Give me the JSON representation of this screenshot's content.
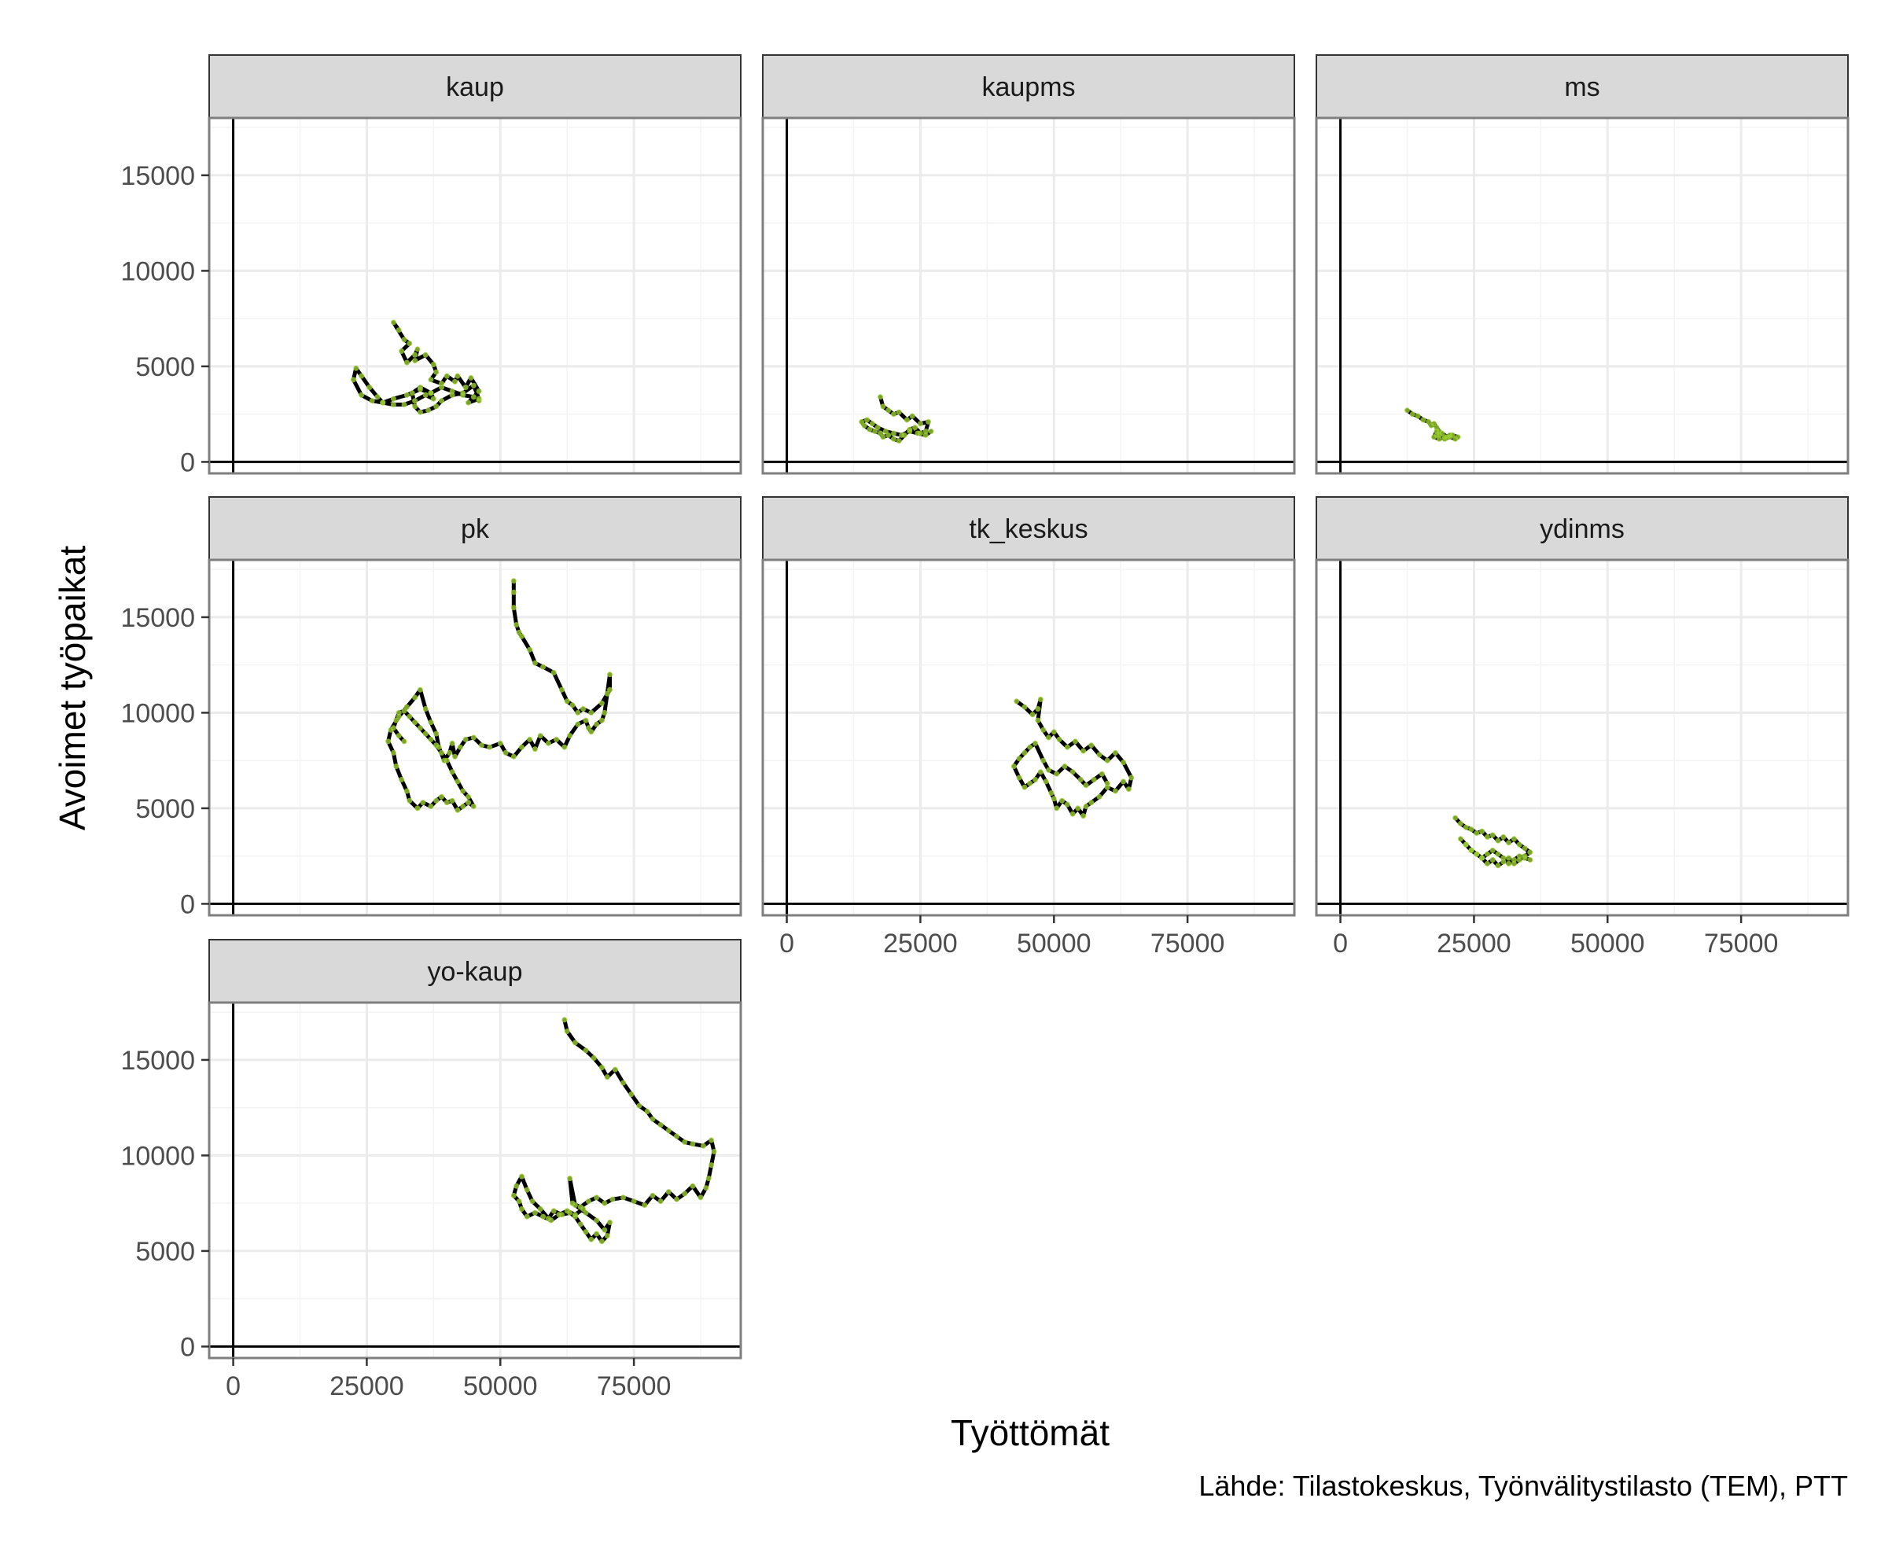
{
  "chart_data": {
    "type": "line",
    "xlabel": "Työttömät",
    "ylabel": "Avoimet työpaikat",
    "caption": "Lähde: Tilastokeskus, Työnvälitystilasto (TEM), PTT",
    "xlim": [
      -4500,
      95000
    ],
    "ylim": [
      -600,
      18000
    ],
    "x_ticks": [
      0,
      25000,
      50000,
      75000
    ],
    "y_ticks": [
      0,
      5000,
      10000,
      15000
    ],
    "grid": true,
    "colors": {
      "line": "#000000",
      "point": "#9acd32",
      "strip_fill": "#d9d9d9",
      "panel_border": "#7f7f7f",
      "grid": "#ebebeb"
    },
    "panels": [
      {
        "name": "kaup",
        "x": [
          31000,
          30000,
          32000,
          33000,
          31500,
          32500,
          34000,
          34500,
          34000,
          36000,
          37500,
          38000,
          37000,
          39000,
          40000,
          41500,
          42000,
          43500,
          44500,
          46000,
          44000,
          46000,
          45000,
          43000,
          41000,
          39000,
          38000,
          36500,
          35000,
          34000,
          33500,
          35000,
          37000,
          37500,
          36000,
          34000,
          32000,
          30000,
          28000,
          27000,
          25500,
          24000,
          23000,
          22500,
          24000,
          26000,
          28000,
          30000,
          32500,
          35000,
          37000,
          39000,
          41000,
          43000,
          45000,
          46000
        ],
        "y": [
          6900,
          7300,
          6400,
          6200,
          5800,
          5200,
          5600,
          5900,
          5300,
          5600,
          5100,
          4700,
          4300,
          4100,
          4500,
          4200,
          4500,
          3900,
          4400,
          3700,
          3100,
          3300,
          4000,
          3600,
          3500,
          3200,
          2900,
          2700,
          2600,
          2900,
          3600,
          3900,
          3600,
          3300,
          3500,
          3200,
          3000,
          3000,
          3100,
          3400,
          3900,
          4500,
          4900,
          4300,
          3500,
          3200,
          3100,
          3300,
          3500,
          3800,
          3600,
          3900,
          3700,
          3500,
          3400,
          3200
        ]
      },
      {
        "name": "kaupms",
        "x": [
          17500,
          18000,
          19000,
          20000,
          21000,
          22500,
          23500,
          25000,
          26500,
          26000,
          25000,
          24000,
          23000,
          22000,
          21000,
          20000,
          19000,
          18000,
          17500,
          16500,
          15500,
          14500,
          14000,
          15000,
          16000,
          17000,
          18500,
          20000,
          21500,
          23000,
          24500,
          26000,
          27000
        ],
        "y": [
          3400,
          2900,
          2700,
          2500,
          2600,
          2200,
          2400,
          2000,
          2100,
          1600,
          1500,
          1800,
          1700,
          1400,
          1100,
          1200,
          1400,
          1300,
          1500,
          1600,
          1700,
          1900,
          2100,
          2200,
          2000,
          1800,
          1600,
          1500,
          1400,
          1600,
          1500,
          1400,
          1600
        ]
      },
      {
        "name": "ms",
        "x": [
          12500,
          13500,
          14500,
          15500,
          16500,
          17000,
          17500,
          18000,
          18500,
          18000,
          19000,
          20000,
          21000,
          22000,
          21500,
          20500,
          19500,
          18500,
          18000,
          17500,
          18500,
          19500,
          20500
        ],
        "y": [
          2700,
          2500,
          2400,
          2200,
          2100,
          1900,
          2000,
          1800,
          1600,
          1400,
          1500,
          1300,
          1400,
          1300,
          1200,
          1300,
          1200,
          1400,
          1600,
          1300,
          1200,
          1300,
          1400
        ]
      },
      {
        "name": "pk",
        "x": [
          52500,
          52500,
          52500,
          53000,
          53500,
          54000,
          55500,
          56500,
          58000,
          60000,
          61500,
          62500,
          63500,
          64500,
          65500,
          67000,
          69000,
          70500,
          70500,
          70000,
          69500,
          69000,
          68000,
          67000,
          66500,
          66000,
          64500,
          63000,
          62000,
          60500,
          59000,
          57500,
          56500,
          55500,
          54000,
          52500,
          51000,
          50000,
          48000,
          46500,
          45000,
          43500,
          42500,
          41500,
          41000,
          40500,
          39500,
          38500,
          38000,
          37000,
          36000,
          35000,
          34000,
          32500,
          31000,
          29500,
          29000,
          30000,
          30500,
          31500,
          32500,
          33000,
          34500,
          35500,
          37000,
          38000,
          39000,
          40000,
          41000,
          42000,
          43000,
          44000,
          45000,
          44000,
          43000,
          42000,
          41000,
          40000,
          39000,
          38000,
          37000,
          36000,
          35000,
          34000,
          33000,
          32000,
          31000,
          30500,
          30000,
          31000,
          32000
        ],
        "y": [
          16900,
          16300,
          15500,
          14600,
          14200,
          14000,
          13300,
          12600,
          12400,
          12100,
          11200,
          10600,
          10400,
          10000,
          10200,
          10000,
          10500,
          11200,
          12000,
          11000,
          10000,
          9600,
          9400,
          9000,
          9200,
          9600,
          9400,
          8800,
          8200,
          8600,
          8400,
          8800,
          8100,
          8600,
          8200,
          7700,
          7900,
          8400,
          8200,
          8300,
          8700,
          8600,
          8200,
          7700,
          8400,
          7900,
          7500,
          8200,
          8900,
          9500,
          10200,
          11200,
          10800,
          10300,
          9800,
          9100,
          8500,
          7900,
          7200,
          6500,
          5900,
          5400,
          5000,
          5300,
          5100,
          5400,
          5600,
          5300,
          5400,
          4900,
          5100,
          5300,
          5100,
          5600,
          5900,
          6400,
          6900,
          7500,
          7900,
          8300,
          8600,
          8900,
          9200,
          9500,
          9800,
          10100,
          10000,
          9600,
          9200,
          8800,
          8500
        ]
      },
      {
        "name": "tk_keskus",
        "x": [
          43000,
          44500,
          46000,
          47000,
          47500,
          47000,
          48000,
          49000,
          50000,
          51000,
          52500,
          54000,
          55500,
          57000,
          58500,
          60000,
          61500,
          63000,
          64500,
          64000,
          63000,
          61500,
          60000,
          58500,
          57000,
          56000,
          55500,
          54500,
          53500,
          52500,
          51500,
          50500,
          50000,
          49500,
          48500,
          47500,
          46500,
          45500,
          44500,
          43500,
          42500,
          43500,
          44500,
          45500,
          46500,
          48000,
          49000,
          50500,
          52000,
          53500,
          55000,
          56000,
          57500,
          59000,
          60000
        ],
        "y": [
          10600,
          10300,
          9900,
          10200,
          10700,
          9600,
          9100,
          8700,
          9000,
          8600,
          8200,
          8500,
          8000,
          8300,
          7800,
          7500,
          7900,
          7400,
          6600,
          6000,
          6400,
          5900,
          6100,
          5600,
          5300,
          5100,
          4600,
          5000,
          4700,
          5200,
          5400,
          5000,
          5500,
          5800,
          6400,
          6900,
          6500,
          6300,
          6100,
          6600,
          7200,
          7600,
          7900,
          8200,
          8400,
          7500,
          7000,
          6800,
          7200,
          6900,
          6500,
          6200,
          6500,
          6800,
          6300
        ]
      },
      {
        "name": "ydinms",
        "x": [
          21500,
          22500,
          23500,
          24500,
          25500,
          26500,
          27500,
          28500,
          29500,
          30500,
          31500,
          32500,
          33500,
          34500,
          35500,
          34500,
          33500,
          32500,
          31500,
          30500,
          29500,
          28500,
          27500,
          26500,
          25500,
          24500,
          23500,
          22500,
          23500,
          24500,
          25500,
          26500,
          27500,
          28500,
          29500,
          30500,
          31500,
          32500,
          33500,
          34500,
          35500
        ],
        "y": [
          4500,
          4200,
          4000,
          3900,
          3700,
          3800,
          3500,
          3600,
          3300,
          3500,
          3200,
          3400,
          3100,
          2900,
          2700,
          2500,
          2300,
          2100,
          2400,
          2200,
          2000,
          2300,
          2100,
          2400,
          2600,
          2800,
          3100,
          3400,
          3100,
          2800,
          2600,
          2400,
          2600,
          2800,
          2600,
          2400,
          2100,
          2300,
          2500,
          2400,
          2300
        ]
      },
      {
        "name": "yo-kaup",
        "x": [
          62000,
          62500,
          64000,
          66000,
          67500,
          69000,
          70000,
          71500,
          73000,
          74500,
          76000,
          77500,
          78500,
          80000,
          81500,
          83000,
          84500,
          86000,
          88000,
          89500,
          90000,
          89500,
          89000,
          88500,
          87500,
          86000,
          84500,
          83000,
          81500,
          80000,
          78500,
          77000,
          75000,
          73000,
          71000,
          69500,
          68000,
          66500,
          65000,
          63500,
          63000,
          64000,
          66000,
          68000,
          69500,
          70500,
          70000,
          69000,
          68000,
          67000,
          66000,
          65000,
          64000,
          63000,
          61500,
          60000,
          59000,
          57500,
          56000,
          55000,
          54000,
          53000,
          52500,
          53500,
          54000,
          55000,
          56500,
          58000,
          59500,
          61000,
          62500,
          64000,
          65500
        ],
        "y": [
          17100,
          16500,
          15900,
          15500,
          15100,
          14600,
          14100,
          14500,
          13800,
          13200,
          12600,
          12300,
          11900,
          11600,
          11300,
          11000,
          10700,
          10600,
          10500,
          10800,
          10200,
          9500,
          8800,
          8300,
          7800,
          8400,
          8000,
          7700,
          8100,
          7600,
          7900,
          7400,
          7600,
          7800,
          7700,
          7500,
          7800,
          7600,
          7300,
          7500,
          8800,
          7400,
          7000,
          6600,
          6100,
          6500,
          5800,
          5500,
          5900,
          5600,
          6000,
          6400,
          6800,
          7000,
          6900,
          7100,
          6700,
          7200,
          7600,
          8200,
          8900,
          8400,
          7900,
          7600,
          7200,
          6800,
          7000,
          6800,
          6600,
          6900,
          7100,
          6900,
          7200
        ]
      }
    ]
  }
}
